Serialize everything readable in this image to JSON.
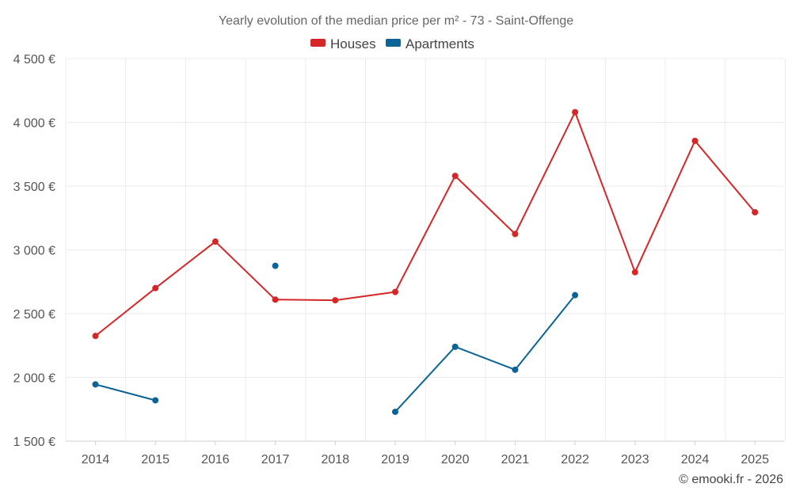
{
  "chart_data": {
    "type": "line",
    "title": "Yearly evolution of the median price per m² - 73 - Saint-Offenge",
    "x": [
      "2014",
      "2015",
      "2016",
      "2017",
      "2018",
      "2019",
      "2020",
      "2021",
      "2022",
      "2023",
      "2024",
      "2025"
    ],
    "ylim": [
      1500,
      4500
    ],
    "yticks": [
      1500,
      2000,
      2500,
      3000,
      3500,
      4000,
      4500
    ],
    "ytick_labels": [
      "1 500 €",
      "2 000 €",
      "2 500 €",
      "3 000 €",
      "3 500 €",
      "4 000 €",
      "4 500 €"
    ],
    "grid": true,
    "legend_position": "top-center",
    "series": [
      {
        "name": "Houses",
        "color": "#d62728",
        "values": [
          2325,
          2700,
          3065,
          2610,
          2605,
          2670,
          3580,
          3125,
          4080,
          2825,
          3855,
          3295
        ]
      },
      {
        "name": "Apartments",
        "color": "#0a6496",
        "values": [
          1945,
          1820,
          null,
          2875,
          null,
          1730,
          2240,
          2060,
          2645,
          null,
          null,
          null
        ]
      }
    ],
    "credit": "© emooki.fr - 2026"
  }
}
